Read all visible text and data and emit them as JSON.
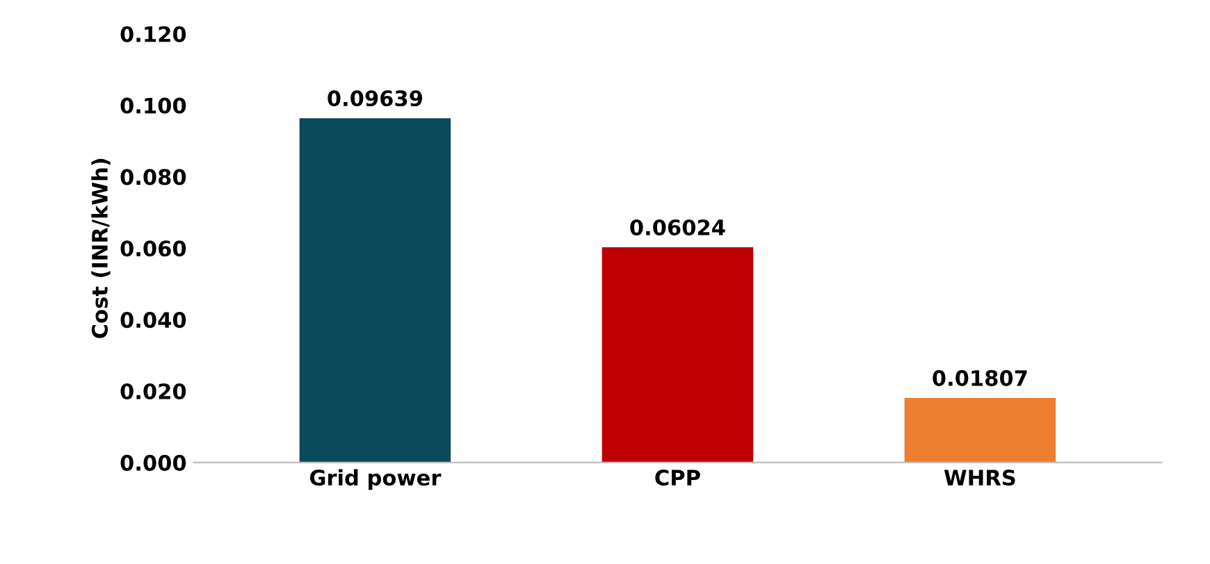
{
  "chart_data": {
    "type": "bar",
    "ylabel": "Cost (INR/kWh)",
    "categories": [
      "Grid power",
      "CPP",
      "WHRS"
    ],
    "values": [
      0.09639,
      0.06024,
      0.01807
    ],
    "colors": [
      "#0b4a5c",
      "#c00000",
      "#ed7d31"
    ],
    "ylim": [
      0,
      0.12
    ],
    "yticks": [
      {
        "value": 0,
        "label": "0.000"
      },
      {
        "value": 0.02,
        "label": "0.020"
      },
      {
        "value": 0.04,
        "label": "0.040"
      },
      {
        "value": 0.06,
        "label": "0.060"
      },
      {
        "value": 0.08,
        "label": "0.080"
      },
      {
        "value": 0.1,
        "label": "0.100"
      },
      {
        "value": 0.12,
        "label": "0.120"
      }
    ],
    "data_labels": true,
    "grid": false,
    "legend": false
  }
}
